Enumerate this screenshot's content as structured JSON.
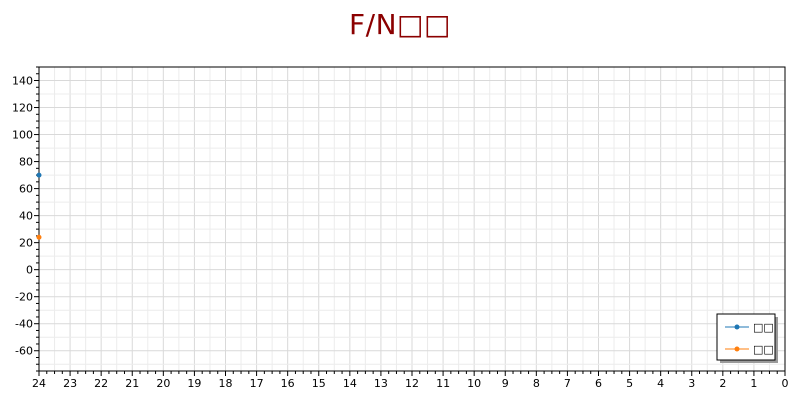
{
  "chart_data": {
    "type": "line",
    "title": "F/N□□",
    "x": {
      "ticks": [
        24,
        23,
        22,
        21,
        20,
        19,
        18,
        17,
        16,
        15,
        14,
        13,
        12,
        11,
        10,
        9,
        8,
        7,
        6,
        5,
        4,
        3,
        2,
        1,
        0
      ],
      "range": [
        24,
        0
      ],
      "reversed": true
    },
    "y": {
      "ticks": [
        140,
        120,
        100,
        80,
        60,
        40,
        20,
        0,
        -20,
        -40,
        -60
      ],
      "range": [
        -75,
        150
      ]
    },
    "grid": true,
    "legend_position": "bottom-right",
    "series": [
      {
        "name": "□□",
        "color": "#1f77b4",
        "points": [
          [
            24,
            70
          ]
        ]
      },
      {
        "name": "□□",
        "color": "#ff7f0e",
        "points": [
          [
            24,
            24
          ]
        ]
      }
    ]
  }
}
